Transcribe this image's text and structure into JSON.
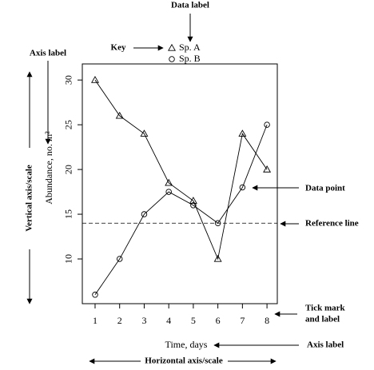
{
  "chart_data": {
    "type": "line",
    "x": [
      1,
      2,
      3,
      4,
      5,
      6,
      7,
      8
    ],
    "xlim": [
      0.48,
      8.42
    ],
    "xticks": [
      1,
      2,
      3,
      4,
      5,
      6,
      7,
      8
    ],
    "ylim": [
      5,
      31.8
    ],
    "yticks": [
      10,
      15,
      20,
      25,
      30
    ],
    "x_label": "Time, days",
    "y_label": "Abundance, no. m²",
    "series": [
      {
        "name": "Sp. A",
        "marker": "triangle",
        "color": "#000000",
        "values": [
          30,
          26,
          24,
          18.5,
          16.5,
          10,
          24,
          20
        ]
      },
      {
        "name": "Sp. B",
        "marker": "circle",
        "color": "#000000",
        "values": [
          6,
          10,
          15,
          17.5,
          16,
          14,
          18,
          25
        ]
      }
    ],
    "reference_line": {
      "value": 14,
      "style": "dashed"
    },
    "annotations": {
      "data_label": "Data label",
      "key": "Key",
      "y_axis_label": "Axis label",
      "vertical_axis": "Vertical axis/scale",
      "data_point": "Data point",
      "reference_line": "Reference line",
      "tick_mark": [
        "Tick mark",
        "and label"
      ],
      "x_axis_label": "Axis label",
      "horizontal_axis": "Horizontal axis/scale"
    }
  }
}
